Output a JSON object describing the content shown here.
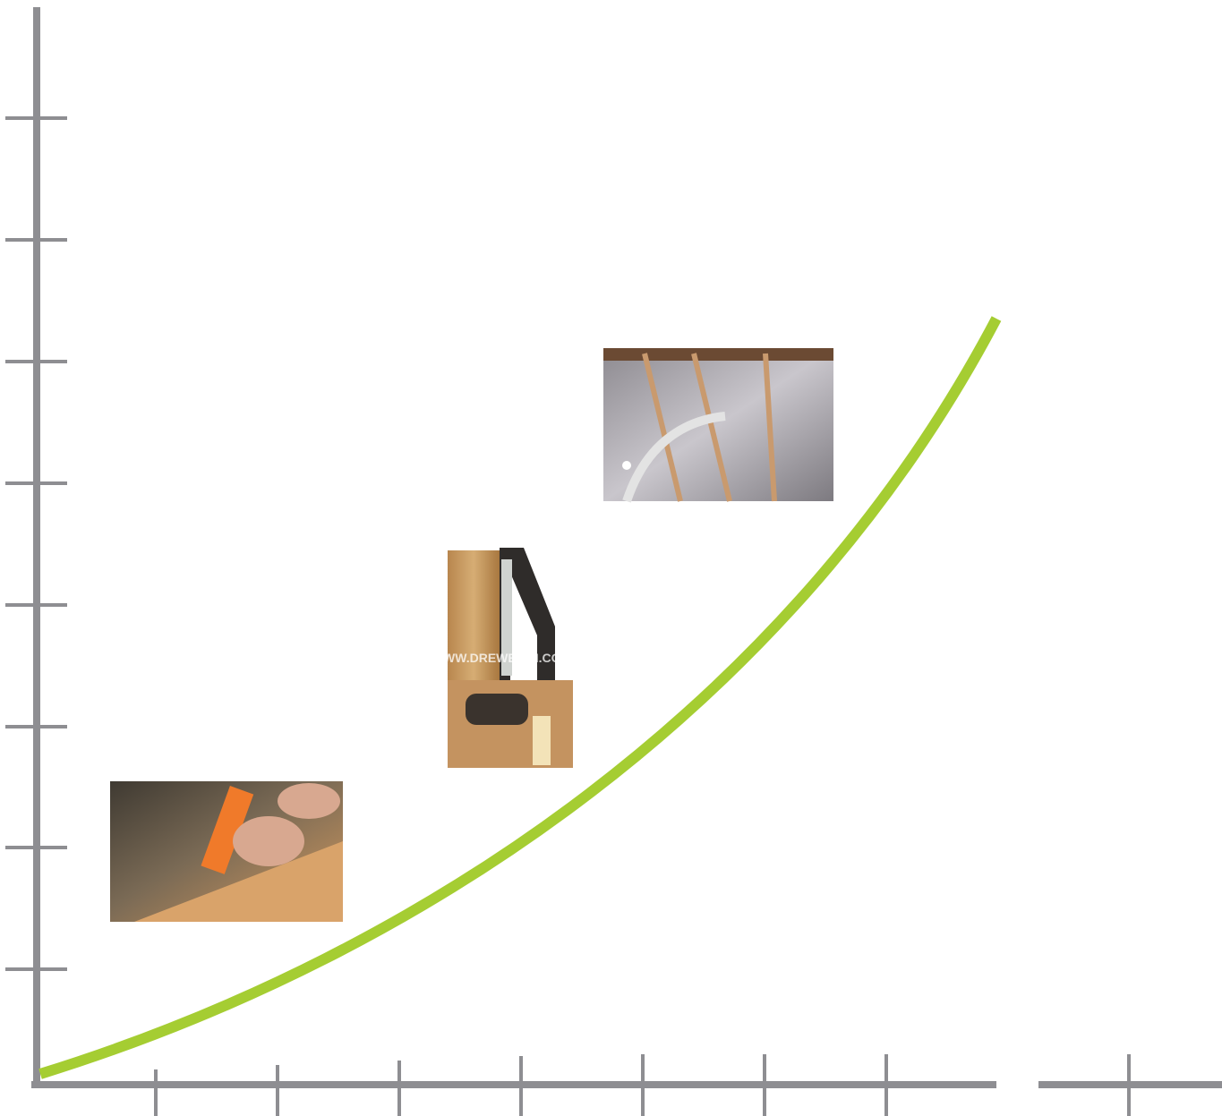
{
  "watermark": "WWW.DREWEXIM.COM"
}
